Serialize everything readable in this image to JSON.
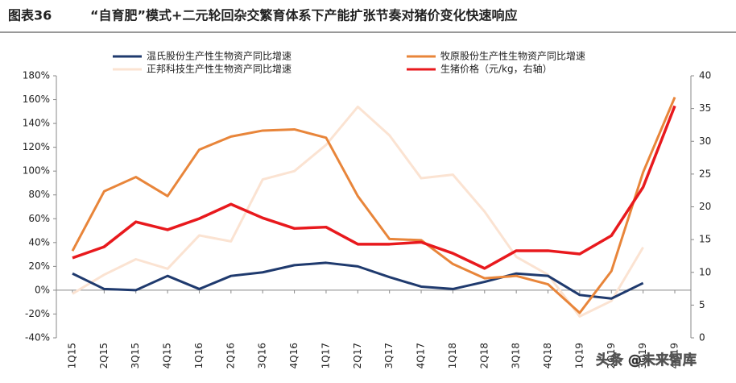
{
  "chart_data": {
    "type": "line",
    "label": "图表36",
    "title": "“自育肥”模式+二元轮回杂交繁育体系下产能扩张节奏对猪价变化快速响应",
    "watermark": "头条 @未来智库",
    "categories": [
      "1Q15",
      "2Q15",
      "3Q15",
      "4Q15",
      "1Q16",
      "2Q16",
      "3Q16",
      "4Q16",
      "1Q17",
      "2Q17",
      "3Q17",
      "4Q17",
      "1Q18",
      "2Q18",
      "3Q18",
      "4Q18",
      "1Q19",
      "2Q19",
      "3Q19",
      "4Q19"
    ],
    "series": [
      {
        "name": "温氏股份生产性生物资产同比增速",
        "color": "#1f3a6e",
        "values": [
          14,
          1,
          0,
          12,
          1,
          12,
          15,
          21,
          23,
          20,
          11,
          3,
          1,
          7,
          14,
          12,
          -4,
          -7,
          6,
          null
        ]
      },
      {
        "name": "牧原股份生产性生物资产同比增速",
        "color": "#e8853a",
        "values": [
          33,
          83,
          95,
          79,
          118,
          129,
          134,
          135,
          128,
          79,
          43,
          42,
          22,
          10,
          12,
          5,
          -19,
          16,
          99,
          162
        ]
      },
      {
        "name": "正邦科技生产性生物资产同比增速",
        "color": "#fbe3d2",
        "values": [
          -3,
          13,
          26,
          18,
          46,
          41,
          93,
          100,
          122,
          154,
          130,
          94,
          97,
          66,
          28,
          13,
          -22,
          -9,
          36,
          null
        ]
      },
      {
        "name": "生猪价格（元/kg，右轴）",
        "color": "#e8191d",
        "axis": "y2",
        "values": [
          12.2,
          13.9,
          17.7,
          16.5,
          18.2,
          20.4,
          18.3,
          16.7,
          16.9,
          14.3,
          14.3,
          14.6,
          12.9,
          10.6,
          13.3,
          13.3,
          12.8,
          15.6,
          23,
          35.4
        ]
      }
    ],
    "ylim": [
      -40,
      180
    ],
    "yticks": [
      {
        "value": -40,
        "label": "-40%"
      },
      {
        "value": -20,
        "label": "-20%"
      },
      {
        "value": 0,
        "label": "0%"
      },
      {
        "value": 20,
        "label": "20%"
      },
      {
        "value": 40,
        "label": "40%"
      },
      {
        "value": 60,
        "label": "60%"
      },
      {
        "value": 80,
        "label": "80%"
      },
      {
        "value": 100,
        "label": "100%"
      },
      {
        "value": 120,
        "label": "120%"
      },
      {
        "value": 140,
        "label": "140%"
      },
      {
        "value": 160,
        "label": "160%"
      },
      {
        "value": 180,
        "label": "180%"
      }
    ],
    "y2lim": [
      0,
      40
    ],
    "y2ticks": [
      0,
      5,
      10,
      15,
      20,
      25,
      30,
      35,
      40
    ]
  }
}
